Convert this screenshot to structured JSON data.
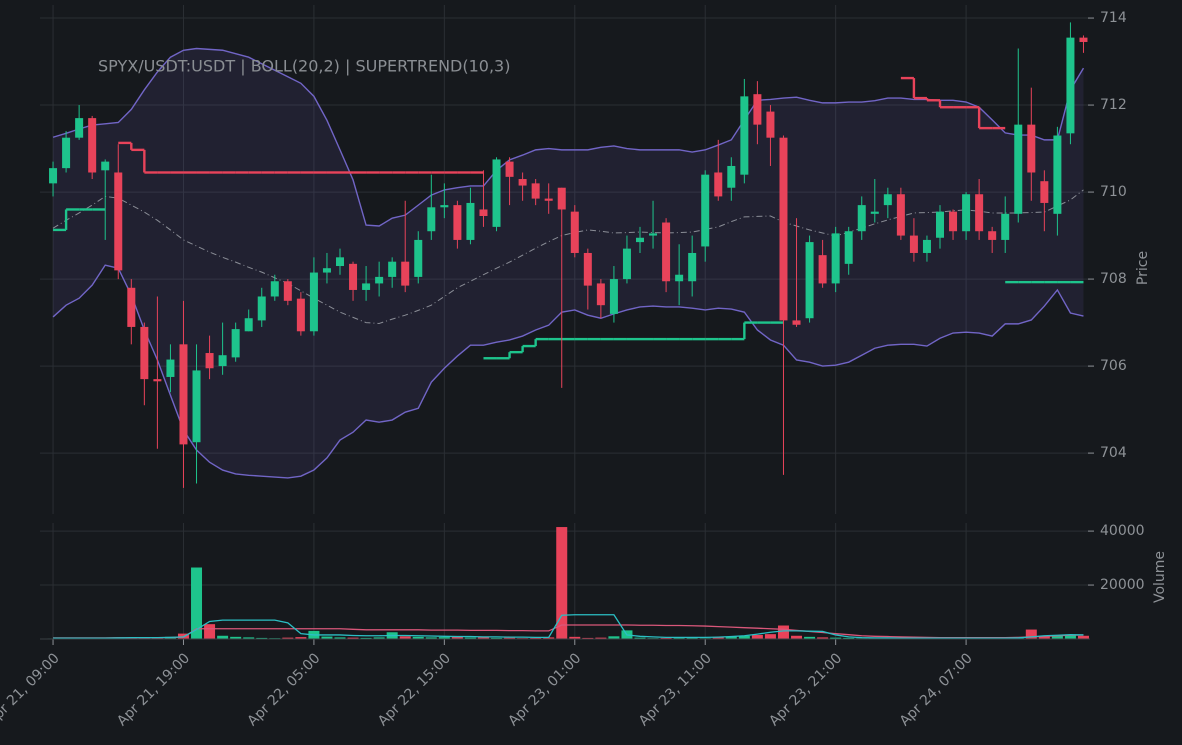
{
  "chart_data": [
    {
      "type": "candlestick",
      "title": "SPYX/USDT:USDT | BOLL(20,2) | SUPERTREND(10,3)",
      "ylabel": "Price",
      "up_color": "#1ec48c",
      "down_color": "#e8435a",
      "xlim": [
        -1,
        79.5
      ],
      "ylim": [
        702.6,
        714.3
      ],
      "yticks": [
        704,
        706,
        708,
        710,
        712,
        714
      ],
      "grid": true,
      "open": [
        710.2,
        710.55,
        711.25,
        711.7,
        710.5,
        710.45,
        707.8,
        706.9,
        705.7,
        705.75,
        706.5,
        704.25,
        706.3,
        706.0,
        706.2,
        706.8,
        707.05,
        707.6,
        707.95,
        707.55,
        706.8,
        708.15,
        708.3,
        708.35,
        707.75,
        707.9,
        708.05,
        708.4,
        708.05,
        709.1,
        709.65,
        709.7,
        708.9,
        709.6,
        709.2,
        710.7,
        710.3,
        710.2,
        709.85,
        710.1,
        709.55,
        708.6,
        707.9,
        707.2,
        708.0,
        708.85,
        709.0,
        709.3,
        707.95,
        707.95,
        708.75,
        710.45,
        710.1,
        710.4,
        712.25,
        711.85,
        711.25,
        707.05,
        707.1,
        708.55,
        707.9,
        708.35,
        709.1,
        709.5,
        709.7,
        709.95,
        709.0,
        708.6,
        708.95,
        709.55,
        709.1,
        709.95,
        709.1,
        708.9,
        709.5,
        711.55,
        710.25,
        709.5,
        711.35,
        713.55
      ],
      "high": [
        710.7,
        711.4,
        712.0,
        711.75,
        710.75,
        711.1,
        708.0,
        707.0,
        707.6,
        706.5,
        707.5,
        706.5,
        706.7,
        707.0,
        707.0,
        707.3,
        707.8,
        708.1,
        708.0,
        707.7,
        708.5,
        708.6,
        708.7,
        708.4,
        708.3,
        708.4,
        708.5,
        709.8,
        709.1,
        710.4,
        710.2,
        709.8,
        710.1,
        710.5,
        710.8,
        710.8,
        710.45,
        710.3,
        710.2,
        710.1,
        709.7,
        708.7,
        708.0,
        708.3,
        709.0,
        709.2,
        709.8,
        709.4,
        708.8,
        709.0,
        710.5,
        711.2,
        710.8,
        712.6,
        712.55,
        712.0,
        711.3,
        709.4,
        709.0,
        708.9,
        709.2,
        709.2,
        709.9,
        710.3,
        710.1,
        710.1,
        709.4,
        709.0,
        709.7,
        709.6,
        710.0,
        710.3,
        709.2,
        709.9,
        713.3,
        712.4,
        710.5,
        711.5,
        713.9,
        713.6
      ],
      "low": [
        709.9,
        710.45,
        711.2,
        710.3,
        708.9,
        708.0,
        706.5,
        705.1,
        704.1,
        705.4,
        703.2,
        703.3,
        705.7,
        705.8,
        706.1,
        706.8,
        706.9,
        707.5,
        707.4,
        706.7,
        706.7,
        707.9,
        708.1,
        707.5,
        707.5,
        707.6,
        707.8,
        707.7,
        707.9,
        708.9,
        709.4,
        708.7,
        708.8,
        709.2,
        709.1,
        709.7,
        709.8,
        709.7,
        709.5,
        705.5,
        708.5,
        707.3,
        707.1,
        707.0,
        707.9,
        708.6,
        708.7,
        707.7,
        707.4,
        707.6,
        708.4,
        709.8,
        709.8,
        710.2,
        711.1,
        710.6,
        703.5,
        706.9,
        707.0,
        707.8,
        707.7,
        708.1,
        708.9,
        709.3,
        709.4,
        708.9,
        708.4,
        708.4,
        708.7,
        708.9,
        708.9,
        708.9,
        708.6,
        708.6,
        709.3,
        709.8,
        709.1,
        709.0,
        711.1,
        713.2
      ],
      "close": [
        710.55,
        711.25,
        711.7,
        710.45,
        710.7,
        708.2,
        706.9,
        705.7,
        705.65,
        706.15,
        704.2,
        705.9,
        705.95,
        706.25,
        706.85,
        707.1,
        707.6,
        707.95,
        707.5,
        706.8,
        708.15,
        708.25,
        708.5,
        707.75,
        707.9,
        708.05,
        708.4,
        707.85,
        708.9,
        709.65,
        709.7,
        708.9,
        709.75,
        709.45,
        710.75,
        710.35,
        710.15,
        709.85,
        709.8,
        709.6,
        708.6,
        707.85,
        707.4,
        708.0,
        708.7,
        708.95,
        709.05,
        707.95,
        708.1,
        708.6,
        710.4,
        709.9,
        710.6,
        712.2,
        711.55,
        711.25,
        707.05,
        706.95,
        708.85,
        707.9,
        709.05,
        709.1,
        709.7,
        709.55,
        709.95,
        709.0,
        708.6,
        708.9,
        709.55,
        709.1,
        709.95,
        709.1,
        708.9,
        709.5,
        711.55,
        710.45,
        709.75,
        711.3,
        713.55,
        713.45
      ],
      "bollinger": {
        "color": "#7165c6",
        "middle_color": "#8a8d96",
        "upper": [
          711.26,
          711.35,
          711.45,
          711.54,
          711.57,
          711.6,
          711.9,
          712.35,
          712.76,
          713.1,
          713.26,
          713.3,
          713.28,
          713.26,
          713.18,
          713.1,
          712.95,
          712.8,
          712.65,
          712.5,
          712.2,
          711.65,
          710.97,
          710.28,
          709.24,
          709.22,
          709.4,
          709.47,
          709.7,
          709.93,
          710.05,
          710.1,
          710.14,
          710.14,
          710.5,
          710.74,
          710.85,
          710.97,
          711.0,
          710.97,
          710.97,
          710.97,
          711.03,
          711.06,
          711.0,
          710.97,
          710.97,
          710.97,
          710.97,
          710.92,
          710.97,
          711.08,
          711.2,
          711.66,
          712.11,
          712.13,
          712.16,
          712.18,
          712.11,
          712.05,
          712.05,
          712.07,
          712.07,
          712.1,
          712.16,
          712.16,
          712.13,
          712.13,
          712.11,
          712.11,
          712.07,
          711.95,
          711.66,
          711.36,
          711.31,
          711.31,
          711.2,
          711.2,
          712.35,
          712.85
        ],
        "middle": [
          709.17,
          709.35,
          709.52,
          709.7,
          709.9,
          709.86,
          709.7,
          709.54,
          709.35,
          709.13,
          708.9,
          708.76,
          708.62,
          708.5,
          708.39,
          708.27,
          708.16,
          708.03,
          707.9,
          707.73,
          707.56,
          707.4,
          707.24,
          707.12,
          707.0,
          706.98,
          707.08,
          707.17,
          707.28,
          707.4,
          707.6,
          707.8,
          707.95,
          708.1,
          708.25,
          708.39,
          708.55,
          708.71,
          708.86,
          709.0,
          709.07,
          709.13,
          709.1,
          709.06,
          709.07,
          709.08,
          709.07,
          709.06,
          709.07,
          709.08,
          709.14,
          709.2,
          709.32,
          709.43,
          709.44,
          709.45,
          709.31,
          709.22,
          709.13,
          709.06,
          708.99,
          709.08,
          709.17,
          709.27,
          709.36,
          709.44,
          709.52,
          709.53,
          709.54,
          709.57,
          709.59,
          709.56,
          709.52,
          709.52,
          709.52,
          709.53,
          709.54,
          709.68,
          709.82,
          710.05
        ],
        "lower": [
          707.13,
          707.4,
          707.56,
          707.86,
          708.32,
          708.25,
          707.63,
          706.83,
          706.14,
          705.33,
          704.53,
          704.07,
          703.79,
          703.61,
          703.52,
          703.49,
          703.47,
          703.45,
          703.43,
          703.47,
          703.61,
          703.89,
          704.3,
          704.48,
          704.76,
          704.71,
          704.76,
          704.94,
          705.03,
          705.63,
          705.95,
          706.23,
          706.48,
          706.48,
          706.55,
          706.6,
          706.69,
          706.83,
          706.94,
          707.24,
          707.29,
          707.17,
          707.1,
          707.2,
          707.29,
          707.36,
          707.38,
          707.36,
          707.36,
          707.33,
          707.29,
          707.33,
          707.31,
          707.24,
          706.83,
          706.6,
          706.48,
          706.14,
          706.09,
          706.0,
          706.02,
          706.09,
          706.25,
          706.41,
          706.48,
          706.5,
          706.5,
          706.46,
          706.64,
          706.76,
          706.78,
          706.76,
          706.69,
          706.97,
          706.97,
          707.06,
          707.38,
          707.75,
          707.22,
          707.15
        ]
      },
      "supertrend": {
        "up_color": "#1ec48c",
        "down_color": "#e8435a",
        "up": [
          709.13,
          709.6,
          709.6,
          709.6,
          709.6,
          null,
          null,
          null,
          null,
          null,
          null,
          null,
          null,
          null,
          null,
          null,
          null,
          null,
          null,
          null,
          null,
          null,
          null,
          null,
          null,
          null,
          null,
          null,
          null,
          null,
          null,
          null,
          null,
          706.18,
          706.18,
          706.32,
          706.46,
          706.62,
          706.62,
          706.62,
          706.62,
          706.62,
          706.62,
          706.62,
          706.62,
          706.62,
          706.62,
          706.62,
          706.62,
          706.62,
          706.62,
          706.62,
          706.62,
          707.0,
          707.0,
          707.0,
          707.0,
          null,
          null,
          null,
          null,
          null,
          null,
          null,
          null,
          null,
          null,
          null,
          null,
          null,
          null,
          null,
          null,
          707.93,
          707.93,
          707.93,
          707.93,
          707.93,
          707.93,
          707.93
        ],
        "down": [
          null,
          null,
          null,
          null,
          null,
          711.13,
          710.97,
          710.45,
          710.45,
          710.45,
          710.45,
          710.45,
          710.45,
          710.45,
          710.45,
          710.45,
          710.45,
          710.45,
          710.45,
          710.45,
          710.45,
          710.45,
          710.45,
          710.45,
          710.45,
          710.45,
          710.45,
          710.45,
          710.45,
          710.45,
          710.45,
          710.45,
          710.45,
          710.45,
          null,
          null,
          null,
          null,
          null,
          null,
          null,
          null,
          null,
          null,
          null,
          null,
          null,
          null,
          null,
          null,
          null,
          null,
          null,
          null,
          null,
          null,
          null,
          null,
          null,
          null,
          null,
          null,
          null,
          null,
          null,
          712.62,
          712.16,
          712.11,
          711.95,
          711.95,
          711.95,
          711.47,
          711.47,
          711.47,
          null,
          null,
          null,
          null,
          null,
          null
        ]
      }
    },
    {
      "type": "bar",
      "ylabel": "Volume",
      "xlim": [
        -1,
        79.5
      ],
      "ylim": [
        0,
        43000
      ],
      "yticks": [
        20000,
        40000
      ],
      "grid": true,
      "xticks": [
        {
          "value": 0,
          "label": "Apr 21, 09:00"
        },
        {
          "value": 10,
          "label": "Apr 21, 19:00"
        },
        {
          "value": 20,
          "label": "Apr 22, 05:00"
        },
        {
          "value": 30,
          "label": "Apr 22, 15:00"
        },
        {
          "value": 40,
          "label": "Apr 23, 01:00"
        },
        {
          "value": 50,
          "label": "Apr 23, 11:00"
        },
        {
          "value": 60,
          "label": "Apr 23, 21:00"
        },
        {
          "value": 70,
          "label": "Apr 24, 07:00"
        }
      ],
      "values": [
        200,
        300,
        500,
        400,
        300,
        600,
        500,
        700,
        600,
        800,
        2000,
        26500,
        5500,
        1200,
        800,
        600,
        400,
        300,
        500,
        700,
        3000,
        900,
        600,
        500,
        400,
        600,
        2500,
        1000,
        800,
        600,
        700,
        1000,
        500,
        600,
        400,
        500,
        300,
        400,
        600,
        41500,
        800,
        400,
        500,
        1000,
        3200,
        500,
        300,
        400,
        500,
        400,
        300,
        600,
        900,
        1200,
        1500,
        1800,
        5000,
        1200,
        800,
        600,
        500,
        400,
        300,
        400,
        300,
        200,
        300,
        200,
        300,
        200,
        300,
        200,
        300,
        400,
        500,
        3500,
        1000,
        1200,
        1500,
        1200
      ],
      "moving_averages": [
        {
          "color": "#d9577a",
          "values": [
            400,
            400,
            400,
            400,
            400,
            450,
            450,
            500,
            500,
            550,
            650,
            3800,
            3800,
            3800,
            3800,
            3800,
            3800,
            3800,
            3800,
            3800,
            3800,
            3800,
            3800,
            3600,
            3400,
            3400,
            3400,
            3400,
            3400,
            3300,
            3300,
            3300,
            3200,
            3200,
            3200,
            3100,
            3100,
            3000,
            3000,
            5200,
            5200,
            5200,
            5200,
            5200,
            5200,
            5100,
            5100,
            5000,
            5000,
            4900,
            4800,
            4600,
            4400,
            4200,
            4000,
            3800,
            3600,
            3200,
            2800,
            2400,
            2000,
            1600,
            1200,
            1000,
            900,
            800,
            700,
            600,
            500,
            500,
            500,
            500,
            500,
            500,
            600,
            800,
            1000,
            1200,
            1400,
            1500
          ]
        },
        {
          "color": "#2bbfc4",
          "values": [
            300,
            300,
            300,
            300,
            300,
            400,
            500,
            500,
            500,
            600,
            800,
            3500,
            6500,
            7000,
            7000,
            7000,
            7000,
            7000,
            6000,
            2000,
            1500,
            1500,
            1500,
            1300,
            1200,
            1200,
            1300,
            1300,
            1200,
            1100,
            1000,
            900,
            900,
            800,
            800,
            700,
            700,
            600,
            600,
            8800,
            9000,
            9000,
            9000,
            9000,
            1500,
            1000,
            800,
            600,
            600,
            600,
            600,
            700,
            900,
            1200,
            1800,
            2500,
            3000,
            3000,
            2900,
            2800,
            1500,
            800,
            500,
            400,
            400,
            300,
            300,
            300,
            300,
            300,
            300,
            300,
            300,
            300,
            400,
            800,
            1200,
            1400,
            1600,
            1500
          ]
        }
      ]
    }
  ]
}
